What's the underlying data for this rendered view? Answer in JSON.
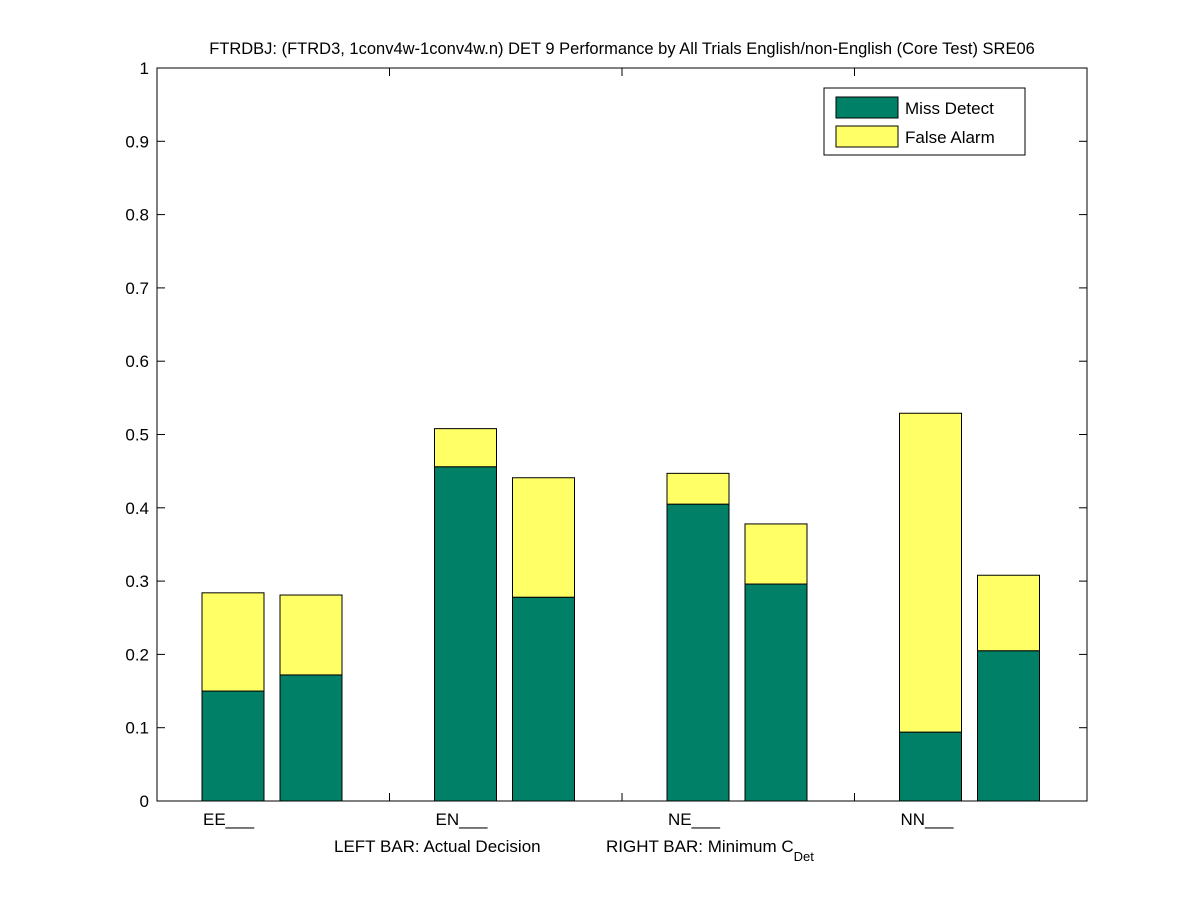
{
  "chart_data": {
    "type": "bar",
    "stacked": true,
    "title": "FTRDBJ: (FTRD3, 1conv4w-1conv4w.n) DET 9 Performance by All Trials English/non-English (Core Test) SRE06",
    "categories": [
      "EE___",
      "EN___",
      "NE___",
      "NN___"
    ],
    "bar_roles": [
      "LEFT BAR: Actual Decision",
      "RIGHT BAR: Minimum C"
    ],
    "xlabel_left": "LEFT BAR: Actual Decision",
    "xlabel_right": "RIGHT BAR: Minimum C",
    "xlabel_right_subscript": "Det",
    "ylim": [
      0,
      1
    ],
    "yticks": [
      "0",
      "0.1",
      "0.2",
      "0.3",
      "0.4",
      "0.5",
      "0.6",
      "0.7",
      "0.8",
      "0.9",
      "1"
    ],
    "legend_position": "top-right",
    "series": [
      {
        "name": "Miss Detect",
        "color": "#008066",
        "actual": [
          0.15,
          0.456,
          0.405,
          0.094
        ],
        "minimum": [
          0.172,
          0.278,
          0.296,
          0.205
        ]
      },
      {
        "name": "False Alarm",
        "color": "#FFFF66",
        "actual": [
          0.134,
          0.052,
          0.042,
          0.435
        ],
        "minimum": [
          0.109,
          0.163,
          0.082,
          0.103
        ]
      }
    ]
  }
}
